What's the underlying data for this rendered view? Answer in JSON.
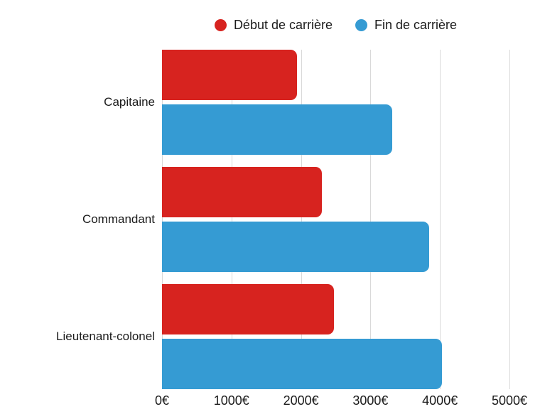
{
  "colors": {
    "series_start": "#d7231f",
    "series_end": "#359bd3",
    "gridline": "#d9d9d9",
    "text": "#1b1b1b",
    "background": "#ffffff"
  },
  "legend": [
    {
      "key": "debut",
      "label": "Début de carrière",
      "color": "#d7231f"
    },
    {
      "key": "fin",
      "label": "Fin de carrière",
      "color": "#359bd3"
    }
  ],
  "chart_data": {
    "type": "bar",
    "orientation": "horizontal",
    "title": "",
    "xlabel": "",
    "ylabel": "",
    "unit": "€",
    "categories": [
      "Capitaine",
      "Commandant",
      "Lieutenant-colonel"
    ],
    "series": [
      {
        "key": "debut",
        "name": "Début de carrière",
        "color": "#d7231f",
        "values": [
          1940,
          2300,
          2470
        ]
      },
      {
        "key": "fin",
        "name": "Fin de carrière",
        "color": "#359bd3",
        "values": [
          3310,
          3840,
          4030
        ]
      }
    ],
    "xlim": [
      0,
      5000
    ],
    "x_ticks": [
      "0€",
      "1000€",
      "2000€",
      "3000€",
      "4000€",
      "5000€"
    ],
    "grid": "vertical",
    "legend_position": "top"
  }
}
